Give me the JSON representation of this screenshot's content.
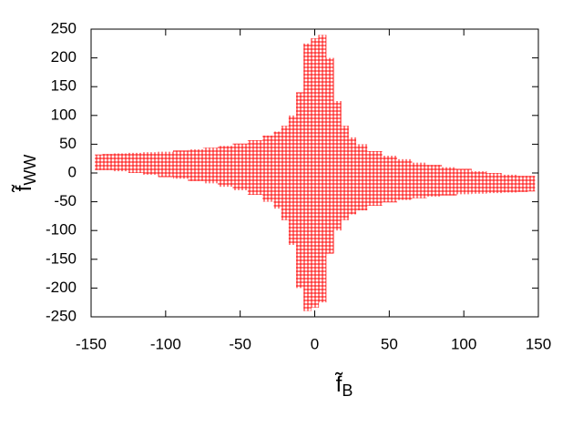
{
  "chart_data": {
    "type": "range",
    "xlabel": {
      "base": "f̃",
      "sub": "B"
    },
    "ylabel": {
      "base": "f̃",
      "sub": "WW"
    },
    "x": [
      -145,
      -140,
      -130,
      -120,
      -110,
      -100,
      -90,
      -80,
      -70,
      -60,
      -50,
      -40,
      -30,
      -25,
      -20,
      -15,
      -10,
      -5,
      0,
      5,
      10,
      15,
      20,
      25,
      30,
      40,
      50,
      60,
      70,
      80,
      90,
      100,
      110,
      120,
      130,
      140,
      145
    ],
    "high": [
      32,
      33,
      34,
      35,
      36,
      37,
      39,
      41,
      44,
      47,
      51,
      57,
      65,
      72,
      82,
      100,
      140,
      225,
      234,
      240,
      200,
      125,
      82,
      62,
      50,
      38,
      30,
      24,
      18,
      14,
      10,
      7,
      3,
      0,
      -3,
      -5,
      -5
    ],
    "low": [
      5,
      5,
      3,
      0,
      -3,
      -7,
      -10,
      -14,
      -18,
      -24,
      -30,
      -38,
      -50,
      -62,
      -82,
      -125,
      -200,
      -240,
      -234,
      -225,
      -140,
      -100,
      -82,
      -72,
      -65,
      -57,
      -51,
      -47,
      -44,
      -41,
      -39,
      -37,
      -36,
      -35,
      -34,
      -33,
      -32
    ],
    "color": "#ff0000",
    "xlim": [
      -150,
      150
    ],
    "xticks": [
      -150,
      -100,
      -50,
      0,
      50,
      100,
      150
    ],
    "ylim": [
      -250,
      250
    ],
    "yticks": [
      -250,
      -200,
      -150,
      -100,
      -50,
      0,
      50,
      100,
      150,
      200,
      250
    ]
  }
}
